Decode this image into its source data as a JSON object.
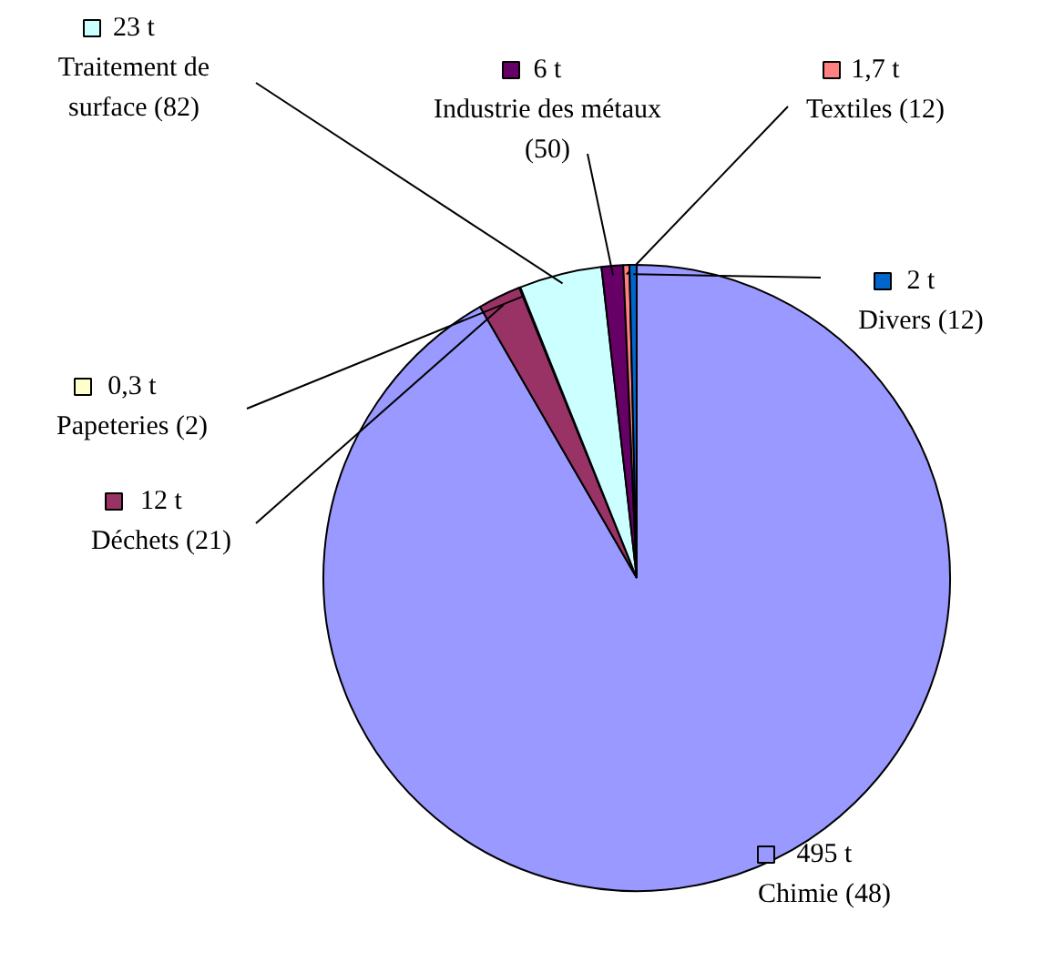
{
  "chart_data": {
    "type": "pie",
    "categories": [
      "Chimie (48)",
      "Déchets (21)",
      "Papeteries (2)",
      "Traitement de surface (82)",
      "Industrie des métaux (50)",
      "Textiles (12)",
      "Divers (12)"
    ],
    "values": [
      495,
      12,
      0.3,
      23,
      6,
      1.7,
      2
    ],
    "value_labels": [
      "495 t",
      "12 t",
      "0,3 t",
      "23 t",
      "6 t",
      "1,7 t",
      "2 t"
    ],
    "legend": "left",
    "colors": [
      "#9999ff",
      "#993366",
      "#ffffcc",
      "#ccffff",
      "#660066",
      "#ff8080",
      "#0066cc"
    ]
  }
}
